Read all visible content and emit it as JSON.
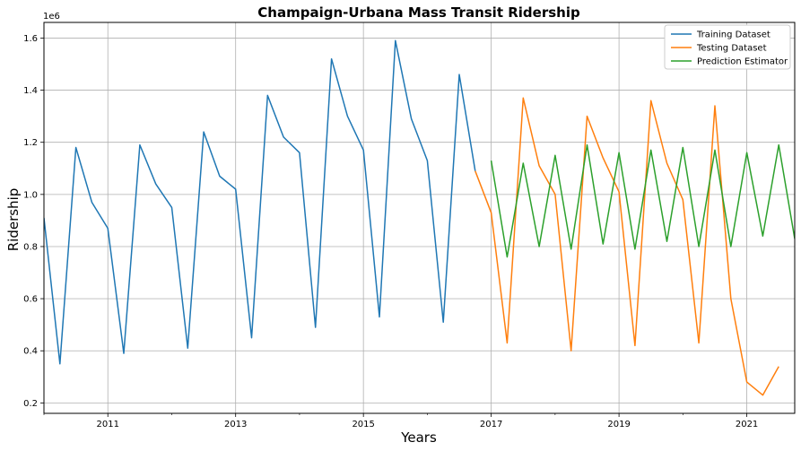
{
  "chart_data": {
    "type": "line",
    "title": "Champaign-Urbana Mass Transit Ridership",
    "xlabel": "Years",
    "ylabel": "Ridership",
    "y_offset_label": "1e6",
    "xlim": [
      2010.0,
      2021.75
    ],
    "ylim": [
      0.16,
      1.66
    ],
    "x_tick_labels": [
      "2011",
      "2013",
      "2015",
      "2017",
      "2019",
      "2021"
    ],
    "x_tick_values": [
      2011,
      2013,
      2015,
      2017,
      2019,
      2021
    ],
    "y_tick_labels": [
      "0.2",
      "0.4",
      "0.6",
      "0.8",
      "1.0",
      "1.2",
      "1.4",
      "1.6"
    ],
    "y_tick_values": [
      0.2,
      0.4,
      0.6,
      0.8,
      1.0,
      1.2,
      1.4,
      1.6
    ],
    "grid": true,
    "legend_position": "top-right",
    "series": [
      {
        "name": "Training Dataset",
        "color": "#1f77b4",
        "x": [
          2010.0,
          2010.25,
          2010.5,
          2010.75,
          2011.0,
          2011.25,
          2011.5,
          2011.75,
          2012.0,
          2012.25,
          2012.5,
          2012.75,
          2013.0,
          2013.25,
          2013.5,
          2013.75,
          2014.0,
          2014.25,
          2014.5,
          2014.75,
          2015.0,
          2015.25,
          2015.5,
          2015.75,
          2016.0,
          2016.25,
          2016.5,
          2016.75
        ],
        "values": [
          0.91,
          0.35,
          1.18,
          0.97,
          0.87,
          0.39,
          1.19,
          1.04,
          0.95,
          0.41,
          1.24,
          1.07,
          1.02,
          0.45,
          1.38,
          1.22,
          1.16,
          0.49,
          1.52,
          1.3,
          1.17,
          0.53,
          1.59,
          1.29,
          1.13,
          0.51,
          1.46,
          1.09
        ]
      },
      {
        "name": "Testing Dataset",
        "color": "#ff7f0e",
        "x": [
          2016.75,
          2017.0,
          2017.25,
          2017.5,
          2017.75,
          2018.0,
          2018.25,
          2018.5,
          2018.75,
          2019.0,
          2019.25,
          2019.5,
          2019.75,
          2020.0,
          2020.25,
          2020.5,
          2020.75,
          2021.0,
          2021.25,
          2021.5
        ],
        "values": [
          1.09,
          0.93,
          0.43,
          1.37,
          1.11,
          1.0,
          0.4,
          1.3,
          1.14,
          1.01,
          0.42,
          1.36,
          1.12,
          0.98,
          0.43,
          1.34,
          0.6,
          0.28,
          0.23,
          0.34
        ]
      },
      {
        "name": "Prediction Estimator",
        "color": "#2ca02c",
        "x": [
          2017.0,
          2017.25,
          2017.5,
          2017.75,
          2018.0,
          2018.25,
          2018.5,
          2018.75,
          2019.0,
          2019.25,
          2019.5,
          2019.75,
          2020.0,
          2020.25,
          2020.5,
          2020.75,
          2021.0,
          2021.25,
          2021.5,
          2021.75
        ],
        "values": [
          1.13,
          0.76,
          1.12,
          0.8,
          1.15,
          0.79,
          1.19,
          0.81,
          1.16,
          0.79,
          1.17,
          0.82,
          1.18,
          0.8,
          1.17,
          0.8,
          1.16,
          0.84,
          1.19,
          0.83
        ]
      }
    ]
  }
}
